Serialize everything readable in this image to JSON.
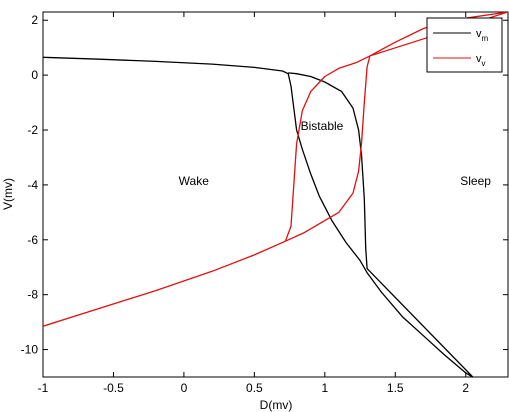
{
  "chart_data": {
    "type": "line",
    "xlabel": "D(mv)",
    "ylabel": "V(mv)",
    "xlim": [
      -1,
      2.3
    ],
    "ylim": [
      -11,
      2.3
    ],
    "xticks": [
      "-1",
      "-0.5",
      "0",
      "0.5",
      "1",
      "1.5",
      "2"
    ],
    "yticks": [
      "2",
      "0",
      "-2",
      "-4",
      "-6",
      "-8",
      "-10"
    ],
    "grid": false,
    "legend_position": "top-right",
    "legend": [
      {
        "base": "v",
        "sub": "m",
        "color": "#000000"
      },
      {
        "base": "v",
        "sub": "v",
        "color": "#e01010"
      }
    ],
    "annotations": [
      {
        "text": "Wake",
        "x": 0.07,
        "y": -4.0
      },
      {
        "text": "Bistable",
        "x": 0.98,
        "y": -2.0
      },
      {
        "text": "Sleep",
        "x": 2.07,
        "y": -4.0
      }
    ],
    "series": [
      {
        "name": "v_m",
        "color": "#000000",
        "points": [
          [
            -1.0,
            0.65
          ],
          [
            -0.6,
            0.58
          ],
          [
            -0.2,
            0.5
          ],
          [
            0.2,
            0.4
          ],
          [
            0.5,
            0.28
          ],
          [
            0.7,
            0.15
          ],
          [
            0.74,
            0.05
          ],
          [
            0.76,
            -0.4
          ],
          [
            0.78,
            -1.2
          ],
          [
            0.8,
            -2.0
          ],
          [
            0.84,
            -2.7
          ],
          [
            0.9,
            -3.6
          ],
          [
            0.96,
            -4.4
          ],
          [
            1.05,
            -5.3
          ],
          [
            1.15,
            -6.1
          ],
          [
            1.25,
            -6.75
          ],
          [
            1.3,
            -7.2
          ],
          [
            1.4,
            -7.9
          ],
          [
            1.55,
            -8.8
          ],
          [
            1.7,
            -9.5
          ],
          [
            1.85,
            -10.2
          ],
          [
            2.0,
            -10.85
          ],
          [
            2.05,
            -11.0
          ],
          [
            1.3,
            -7.05
          ],
          [
            1.29,
            -6.3
          ],
          [
            1.28,
            -4.5
          ],
          [
            1.26,
            -2.9
          ],
          [
            1.24,
            -2.0
          ],
          [
            1.2,
            -1.2
          ],
          [
            1.12,
            -0.6
          ],
          [
            1.0,
            -0.25
          ],
          [
            0.9,
            -0.05
          ],
          [
            0.8,
            0.05
          ],
          [
            0.74,
            0.08
          ]
        ]
      },
      {
        "name": "v_v",
        "color": "#e01010",
        "points": [
          [
            -1.0,
            -9.15
          ],
          [
            -0.6,
            -8.5
          ],
          [
            -0.2,
            -7.85
          ],
          [
            0.2,
            -7.15
          ],
          [
            0.5,
            -6.55
          ],
          [
            0.72,
            -6.05
          ],
          [
            0.76,
            -5.5
          ],
          [
            0.78,
            -4.0
          ],
          [
            0.8,
            -2.5
          ],
          [
            0.84,
            -1.3
          ],
          [
            0.9,
            -0.6
          ],
          [
            1.0,
            -0.05
          ],
          [
            1.1,
            0.25
          ],
          [
            1.22,
            0.45
          ],
          [
            1.32,
            0.7
          ],
          [
            1.5,
            1.2
          ],
          [
            1.7,
            1.7
          ],
          [
            1.9,
            2.0
          ],
          [
            2.3,
            2.3
          ],
          [
            1.32,
            0.7
          ],
          [
            1.3,
            0.3
          ],
          [
            1.28,
            -1.0
          ],
          [
            1.26,
            -2.5
          ],
          [
            1.24,
            -3.5
          ],
          [
            1.2,
            -4.3
          ],
          [
            1.1,
            -5.0
          ],
          [
            1.0,
            -5.3
          ],
          [
            0.85,
            -5.75
          ],
          [
            0.72,
            -6.05
          ]
        ]
      }
    ]
  }
}
